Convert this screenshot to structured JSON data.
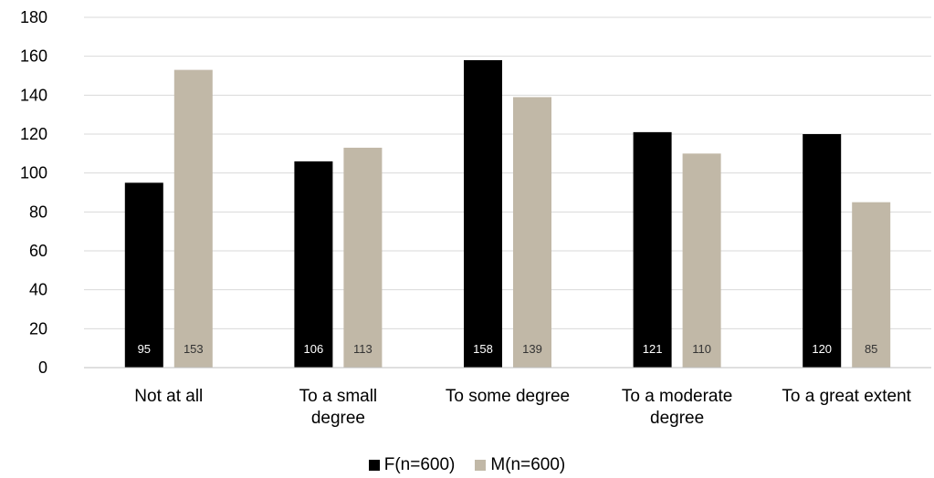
{
  "chart_data": {
    "type": "bar",
    "title": "",
    "xlabel": "",
    "ylabel": "",
    "ylim": [
      0,
      180
    ],
    "yticks": [
      0,
      20,
      40,
      60,
      80,
      100,
      120,
      140,
      160,
      180
    ],
    "grid": true,
    "legend_position": "bottom",
    "categories": [
      [
        "Not at all"
      ],
      [
        "To a small",
        "degree"
      ],
      [
        "To some degree"
      ],
      [
        "To a moderate",
        "degree"
      ],
      [
        "To a great extent"
      ]
    ],
    "series": [
      {
        "name": "F(n=600)",
        "color": "#000000",
        "label_color": "#ffffff",
        "values": [
          95,
          106,
          158,
          121,
          120
        ]
      },
      {
        "name": "M(n=600)",
        "color": "#c1b8a7",
        "label_color": "#333333",
        "values": [
          153,
          113,
          139,
          110,
          85
        ]
      }
    ],
    "gridline_color": "#d9d9d9",
    "axis_color": "#bfbfbf"
  }
}
